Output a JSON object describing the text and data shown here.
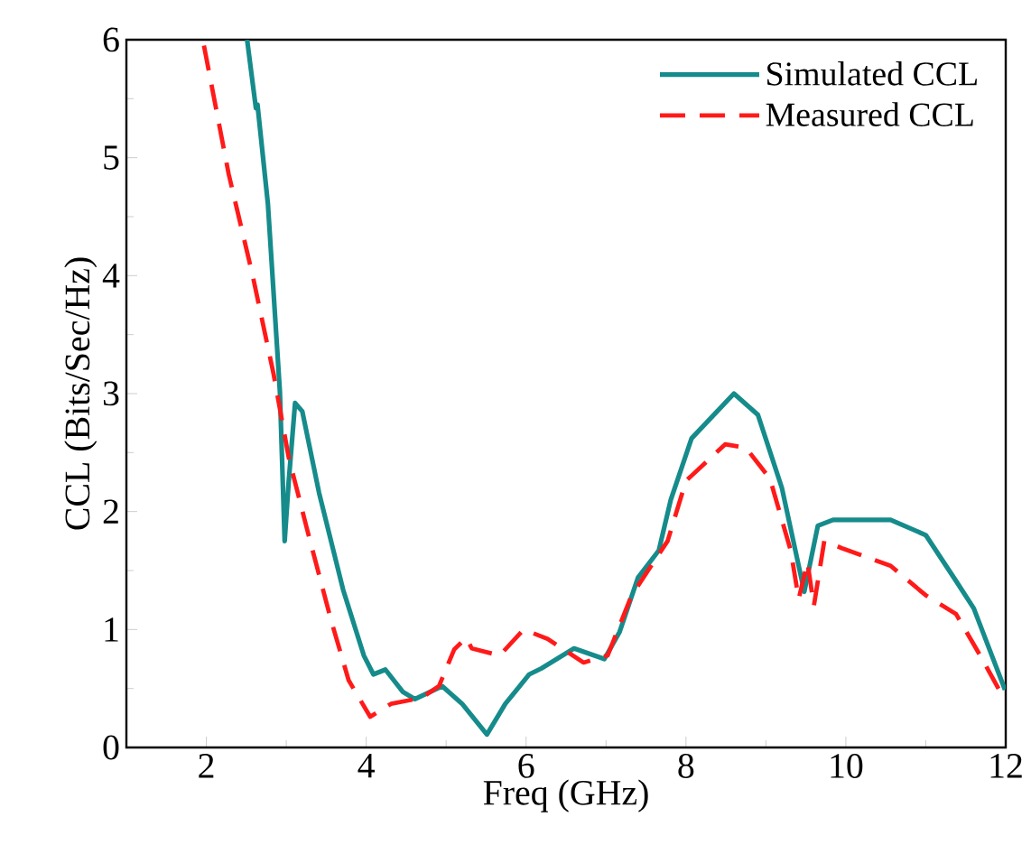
{
  "chart_data": {
    "type": "line",
    "xlabel": "Freq (GHz)",
    "ylabel": "CCL (Bits/Sec/Hz)",
    "xlim": [
      1,
      12
    ],
    "ylim": [
      0,
      6
    ],
    "xticks": [
      2,
      4,
      6,
      8,
      10,
      12
    ],
    "yticks": [
      0,
      1,
      2,
      3,
      4,
      5,
      6
    ],
    "legend": "top right",
    "grid": false,
    "series": [
      {
        "name": "Simulated CCL",
        "color": "#168b8b",
        "line_style": "solid",
        "x": [
          2.51,
          2.62,
          2.64,
          2.77,
          2.92,
          2.98,
          3.03,
          3.11,
          3.2,
          3.41,
          3.71,
          3.97,
          4.09,
          4.24,
          4.46,
          4.61,
          4.95,
          5.2,
          5.51,
          5.74,
          6.04,
          6.19,
          6.6,
          6.98,
          7.17,
          7.4,
          7.66,
          7.81,
          8.07,
          8.6,
          8.9,
          9.2,
          9.48,
          9.65,
          9.84,
          10.56,
          11.0,
          11.38,
          11.6,
          11.99
        ],
        "values": [
          6.0,
          5.42,
          5.45,
          4.61,
          3.02,
          1.75,
          2.25,
          2.92,
          2.85,
          2.16,
          1.34,
          0.78,
          0.62,
          0.66,
          0.47,
          0.41,
          0.52,
          0.37,
          0.11,
          0.37,
          0.62,
          0.67,
          0.84,
          0.75,
          0.98,
          1.44,
          1.67,
          2.1,
          2.62,
          3.0,
          2.82,
          2.2,
          1.32,
          1.88,
          1.93,
          1.93,
          1.8,
          1.41,
          1.18,
          0.49
        ]
      },
      {
        "name": "Measured CCL",
        "color": "#ff1a1a",
        "line_style": "dashed",
        "x": [
          1.97,
          2.28,
          2.58,
          2.84,
          3.03,
          3.26,
          3.56,
          3.78,
          4.05,
          4.31,
          4.69,
          4.91,
          5.1,
          5.25,
          5.32,
          5.67,
          5.97,
          6.27,
          6.72,
          7.02,
          7.32,
          7.77,
          8.0,
          8.49,
          8.75,
          9.05,
          9.31,
          9.41,
          9.52,
          9.6,
          9.73,
          9.95,
          10.56,
          11.0,
          11.38,
          11.68,
          11.99
        ],
        "values": [
          5.95,
          4.86,
          4.0,
          3.17,
          2.46,
          1.85,
          1.08,
          0.57,
          0.26,
          0.37,
          0.42,
          0.52,
          0.83,
          0.93,
          0.84,
          0.78,
          1.0,
          0.92,
          0.72,
          0.78,
          1.29,
          1.75,
          2.26,
          2.57,
          2.54,
          2.28,
          1.67,
          1.26,
          1.57,
          1.2,
          1.75,
          1.69,
          1.54,
          1.29,
          1.13,
          0.78,
          0.4
        ]
      }
    ]
  }
}
